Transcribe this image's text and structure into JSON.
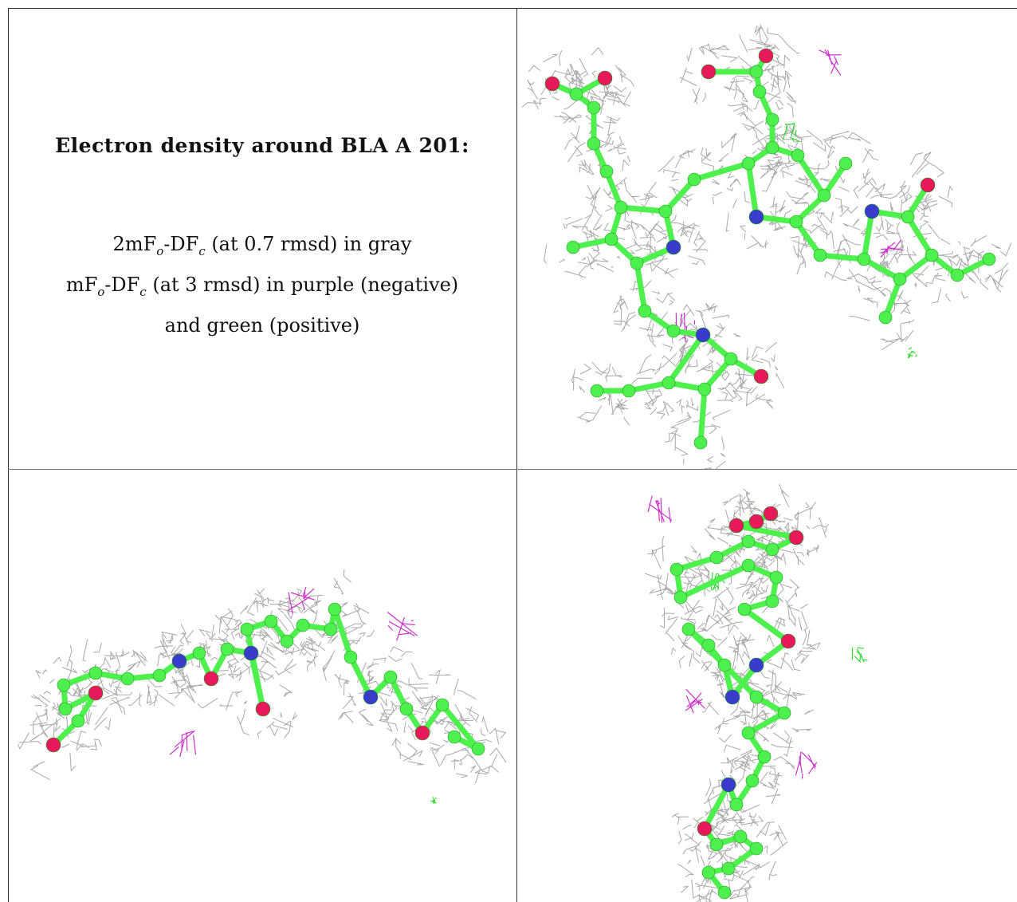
{
  "caption": {
    "title": "Electron density around BLA A 201:",
    "line1": {
      "a": "2mF",
      "b": "o",
      "c": "-DF",
      "d": "c",
      "e": " (at 0.7 rmsd) in gray"
    },
    "line2": {
      "a": "mF",
      "b": "o",
      "c": "-DF",
      "d": "c",
      "e": " (at 3 rmsd) in purple (negative)"
    },
    "line3": "and green (positive)"
  },
  "colors": {
    "carbon": "#4ef04e",
    "oxygen": "#e8195a",
    "nitrogen": "#3a3acc",
    "mesh": "#a8a8a8",
    "negative": "#cc33cc",
    "positive": "#33dd33"
  },
  "panels": [
    {
      "name": "top-right-view"
    },
    {
      "name": "bottom-left-view"
    },
    {
      "name": "bottom-right-view"
    }
  ]
}
